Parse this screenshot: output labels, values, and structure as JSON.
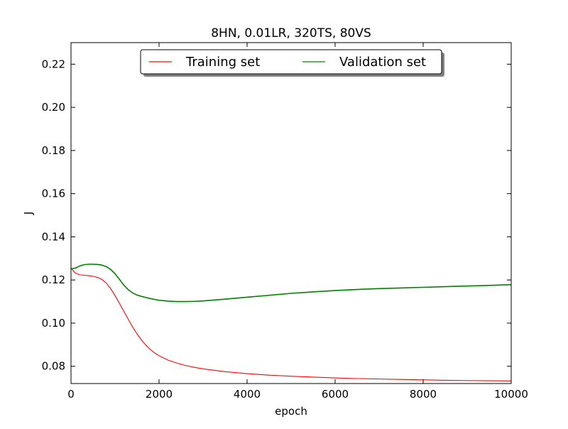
{
  "chart_data": {
    "type": "line",
    "title": "8HN, 0.01LR, 320TS, 80VS",
    "xlabel": "epoch",
    "ylabel": "J",
    "xlim": [
      0,
      10000
    ],
    "ylim": [
      0.072,
      0.23
    ],
    "xticks": [
      0,
      2000,
      4000,
      6000,
      8000,
      10000
    ],
    "xtick_labels": [
      "0",
      "2000",
      "4000",
      "6000",
      "8000",
      "10000"
    ],
    "yticks": [
      0.08,
      0.1,
      0.12,
      0.14,
      0.16,
      0.18,
      0.2,
      0.22
    ],
    "ytick_labels": [
      "0.08",
      "0.10",
      "0.12",
      "0.14",
      "0.16",
      "0.18",
      "0.20",
      "0.22"
    ],
    "grid": false,
    "legend": {
      "placement": "top-center",
      "columns": 2,
      "shadow": true
    },
    "series": [
      {
        "name": "Training set",
        "color": "#ff0000",
        "x": [
          0,
          100,
          200,
          300,
          400,
          500,
          600,
          700,
          800,
          900,
          1000,
          1100,
          1200,
          1300,
          1400,
          1500,
          1600,
          1700,
          1800,
          1900,
          2000,
          2200,
          2400,
          2600,
          2800,
          3000,
          3500,
          4000,
          4500,
          5000,
          5500,
          6000,
          6500,
          7000,
          7500,
          8000,
          8500,
          9000,
          9500,
          10000
        ],
        "values": [
          0.1255,
          0.1232,
          0.1224,
          0.1222,
          0.122,
          0.1217,
          0.1212,
          0.1203,
          0.1186,
          0.116,
          0.1128,
          0.1092,
          0.1055,
          0.1018,
          0.0982,
          0.095,
          0.0922,
          0.0898,
          0.0878,
          0.0862,
          0.0849,
          0.0829,
          0.0815,
          0.0804,
          0.0795,
          0.0788,
          0.0775,
          0.0766,
          0.0759,
          0.0754,
          0.075,
          0.0746,
          0.0743,
          0.0741,
          0.0739,
          0.0737,
          0.0735,
          0.0734,
          0.0733,
          0.0732
        ]
      },
      {
        "name": "Validation set",
        "color": "#008000",
        "x": [
          0,
          100,
          200,
          300,
          400,
          500,
          600,
          700,
          800,
          900,
          1000,
          1100,
          1200,
          1300,
          1400,
          1500,
          1600,
          1800,
          2000,
          2200,
          2400,
          2600,
          2800,
          3000,
          3500,
          4000,
          4500,
          5000,
          5500,
          6000,
          6500,
          7000,
          7500,
          8000,
          8500,
          9000,
          9500,
          10000
        ],
        "values": [
          0.1252,
          0.1255,
          0.1265,
          0.1271,
          0.1273,
          0.1273,
          0.1272,
          0.1269,
          0.1262,
          0.1249,
          0.1229,
          0.1203,
          0.1176,
          0.1155,
          0.114,
          0.113,
          0.1124,
          0.1114,
          0.1106,
          0.1102,
          0.11,
          0.11,
          0.1101,
          0.1103,
          0.1111,
          0.112,
          0.1129,
          0.1138,
          0.1145,
          0.1151,
          0.1156,
          0.116,
          0.1163,
          0.1166,
          0.1169,
          0.1172,
          0.1175,
          0.1178
        ]
      }
    ]
  }
}
